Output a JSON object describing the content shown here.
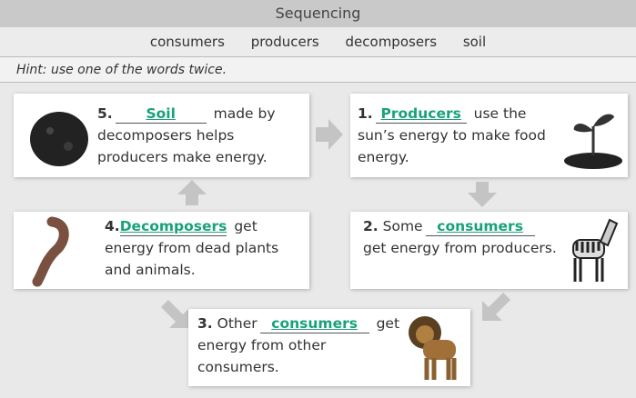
{
  "header": {
    "title": "Sequencing",
    "word_bank": [
      "consumers",
      "producers",
      "decomposers",
      "soil"
    ],
    "hint": "Hint: use one of the words twice."
  },
  "steps": [
    {
      "number": "5.",
      "answer": "Soil",
      "text": "made by decomposers helps producers make energy."
    },
    {
      "number": "1.",
      "answer": "Producers",
      "text": "use the sun’s energy to make food energy."
    },
    {
      "number": "2.",
      "lead": "Some",
      "answer": "consumers",
      "text": "get energy from producers."
    },
    {
      "number": "3.",
      "lead": "Other",
      "answer": "consumers",
      "text": "get energy from other consumers."
    },
    {
      "number": "4.",
      "answer": "Decomposers",
      "text": "get energy from dead plants and animals."
    }
  ]
}
